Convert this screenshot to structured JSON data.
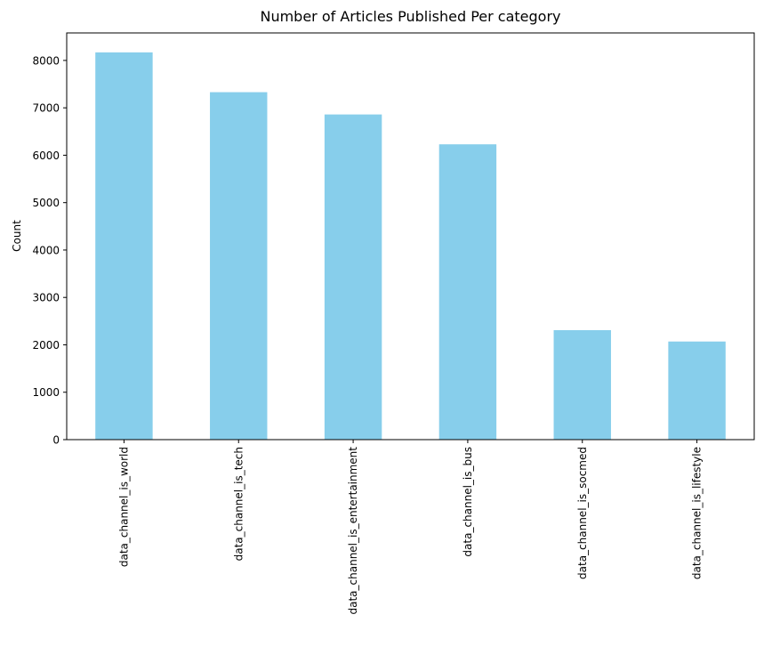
{
  "chart_data": {
    "type": "bar",
    "title": "Number of Articles Published Per category",
    "xlabel": "",
    "ylabel": "Count",
    "categories": [
      "data_channel_is_world",
      "data_channel_is_tech",
      "data_channel_is_entertainment",
      "data_channel_is_bus",
      "data_channel_is_socmed",
      "data_channel_is_lifestyle"
    ],
    "values": [
      8170,
      7330,
      6860,
      6230,
      2310,
      2070
    ],
    "ylim": [
      0,
      8580
    ],
    "yticks": [
      0,
      1000,
      2000,
      3000,
      4000,
      5000,
      6000,
      7000,
      8000
    ],
    "bar_color": "#87ceeb",
    "grid": false,
    "legend": "none"
  }
}
